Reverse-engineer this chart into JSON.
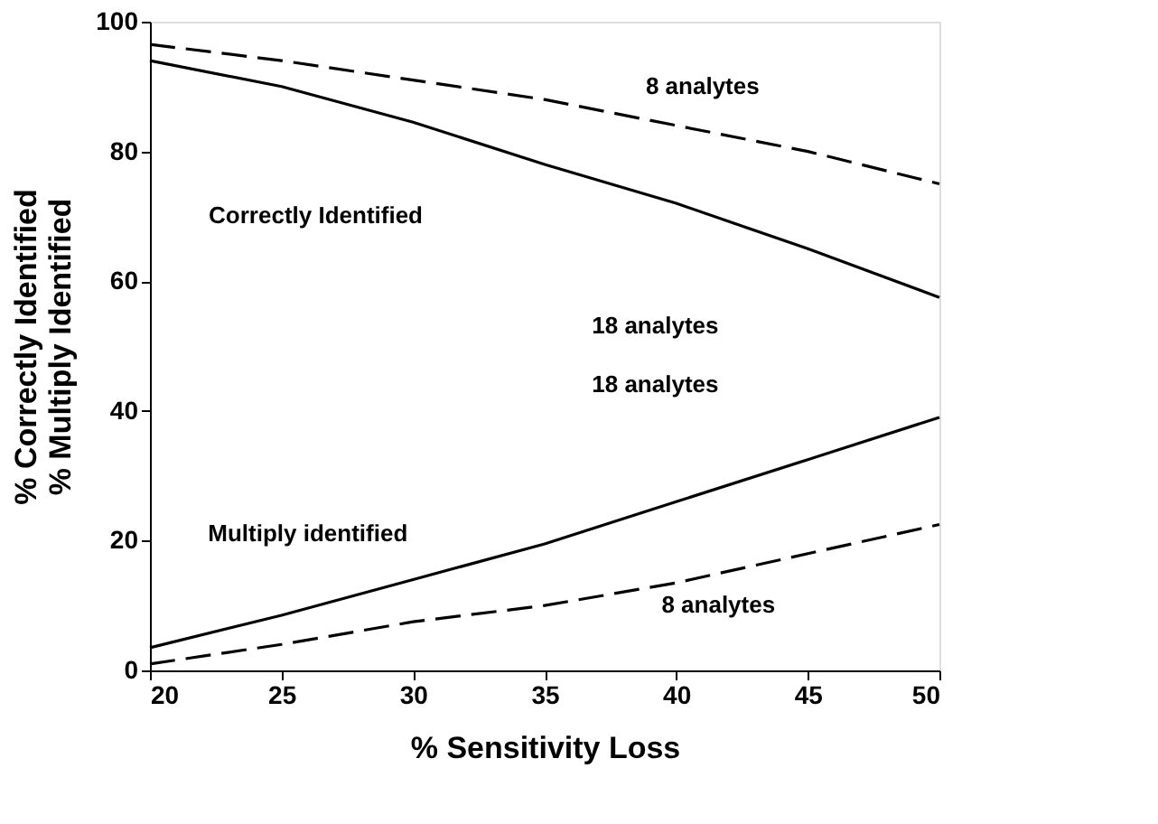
{
  "chart_data": {
    "type": "line",
    "xlabel": "% Sensitivity Loss",
    "ylabel": "% Correctly Identified\n% Multiply Identified",
    "x": [
      20,
      25,
      30,
      35,
      40,
      45,
      50
    ],
    "series": [
      {
        "color": "#000000",
        "line_style": "solid",
        "values": [
          94,
          90,
          84.5,
          78,
          72,
          65,
          57.5
        ]
      },
      {
        "color": "#000000",
        "line_style": "dashed",
        "values": [
          96.5,
          94,
          91,
          88,
          84,
          80,
          75
        ]
      },
      {
        "color": "#000000",
        "line_style": "solid",
        "values": [
          3.5,
          8.5,
          14,
          19.5,
          26,
          32.5,
          39
        ]
      },
      {
        "color": "#000000",
        "line_style": "dashed",
        "values": [
          1,
          4,
          7.5,
          10,
          13.5,
          18,
          22.5
        ]
      }
    ],
    "xlim": [
      20,
      50
    ],
    "xticks": [
      20,
      25,
      30,
      35,
      40,
      45,
      50
    ],
    "ylim": [
      0,
      100
    ],
    "yticks": [
      0,
      20,
      40,
      60,
      80,
      100
    ],
    "grid": false,
    "marker": "none",
    "annotations": [
      "8 analytes",
      "Correctly Identified",
      "18 analytes",
      "18 analytes",
      "Multiply identified",
      "8 analytes"
    ]
  }
}
